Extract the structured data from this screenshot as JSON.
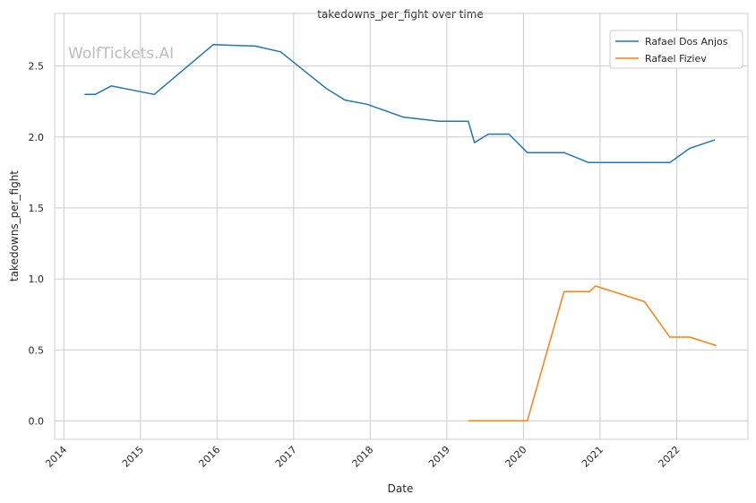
{
  "chart_data": {
    "type": "line",
    "title": "takedowns_per_fight over time",
    "xlabel": "Date",
    "ylabel": "takedowns_per_fight",
    "watermark": "WolfTickets.AI",
    "xlim": [
      2013.88,
      2022.93
    ],
    "ylim": [
      -0.13,
      2.87
    ],
    "x_ticks": [
      2014,
      2015,
      2016,
      2017,
      2018,
      2019,
      2020,
      2021,
      2022
    ],
    "x_tick_labels": [
      "2014",
      "2015",
      "2016",
      "2017",
      "2018",
      "2019",
      "2020",
      "2021",
      "2022"
    ],
    "y_ticks": [
      0.0,
      0.5,
      1.0,
      1.5,
      2.0,
      2.5
    ],
    "y_tick_labels": [
      "0.0",
      "0.5",
      "1.0",
      "1.5",
      "2.0",
      "2.5"
    ],
    "grid": true,
    "legend_placement": "top-right",
    "series": [
      {
        "name": "Rafael Dos Anjos",
        "color": "#1f77b4",
        "x": [
          2014.27,
          2014.41,
          2014.62,
          2015.18,
          2015.95,
          2016.5,
          2016.83,
          2017.43,
          2017.67,
          2017.96,
          2018.43,
          2018.9,
          2019.28,
          2019.36,
          2019.54,
          2019.81,
          2020.05,
          2020.53,
          2020.85,
          2021.91,
          2022.17,
          2022.5
        ],
        "y": [
          2.3,
          2.3,
          2.36,
          2.3,
          2.65,
          2.64,
          2.6,
          2.34,
          2.26,
          2.23,
          2.14,
          2.11,
          2.11,
          1.96,
          2.02,
          2.02,
          1.89,
          1.89,
          1.82,
          1.82,
          1.92,
          1.98
        ]
      },
      {
        "name": "Rafael Fiziev",
        "color": "#ff7f0e",
        "x": [
          2019.28,
          2020.05,
          2020.53,
          2020.86,
          2020.94,
          2021.58,
          2021.91,
          2022.17,
          2022.52
        ],
        "y": [
          0.0,
          0.0,
          0.91,
          0.91,
          0.95,
          0.84,
          0.59,
          0.59,
          0.53
        ]
      }
    ]
  }
}
